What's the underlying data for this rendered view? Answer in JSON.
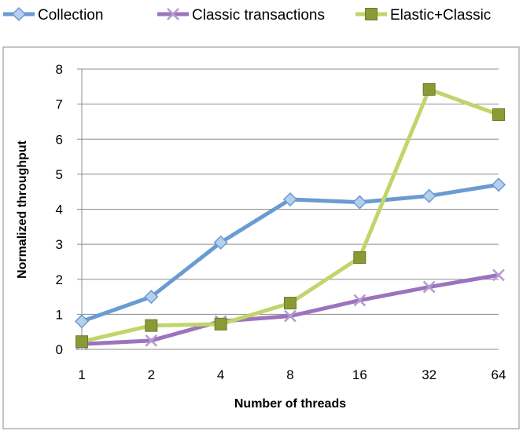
{
  "chart_data": {
    "type": "line",
    "categories": [
      "1",
      "2",
      "4",
      "8",
      "16",
      "32",
      "64"
    ],
    "xlabel": "Number of threads",
    "ylabel": "Normalized throughput",
    "ylim": [
      0,
      8
    ],
    "yticks": [
      "0",
      "1",
      "2",
      "3",
      "4",
      "5",
      "6",
      "7",
      "8"
    ],
    "grid": "horizontal",
    "legend_position": "top",
    "series": [
      {
        "name": "Collection",
        "color": "#6a9bd1",
        "marker": "diamond",
        "values": [
          0.8,
          1.5,
          3.05,
          4.28,
          4.2,
          4.38,
          4.7
        ]
      },
      {
        "name": "Classic transactions",
        "color": "#9c73bc",
        "marker": "x",
        "values": [
          0.15,
          0.25,
          0.8,
          0.95,
          1.4,
          1.78,
          2.12
        ]
      },
      {
        "name": "Elastic+Classic",
        "color": "#c1d56b",
        "marker": "square",
        "marker_color": "#8b9a36",
        "values": [
          0.22,
          0.68,
          0.72,
          1.32,
          2.62,
          7.42,
          6.7
        ]
      }
    ]
  }
}
